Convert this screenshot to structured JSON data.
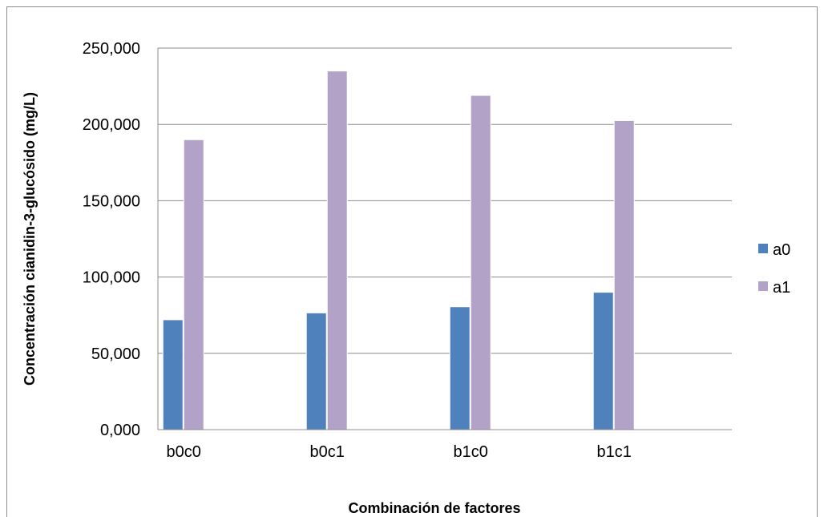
{
  "chart_data": {
    "type": "bar",
    "title": "",
    "xlabel": "Combinación de factores",
    "ylabel": "Concentración cianidin-3-glucósido (mg/L)",
    "categories": [
      "b0c0",
      "b0c1",
      "b1c0",
      "b1c1"
    ],
    "ylim": [
      0,
      250
    ],
    "yticks": [
      0,
      50,
      100,
      150,
      200,
      250
    ],
    "ytick_labels": [
      "0,000",
      "50,000",
      "100,000",
      "150,000",
      "200,000",
      "250,000"
    ],
    "grid": true,
    "legend_position": "right",
    "series": [
      {
        "name": "a0",
        "color": "#4f81bd",
        "values": [
          72,
          76.5,
          80.5,
          90
        ]
      },
      {
        "name": "a1",
        "color": "#b3a2c7",
        "values": [
          190,
          235,
          219,
          202.5
        ]
      }
    ]
  }
}
